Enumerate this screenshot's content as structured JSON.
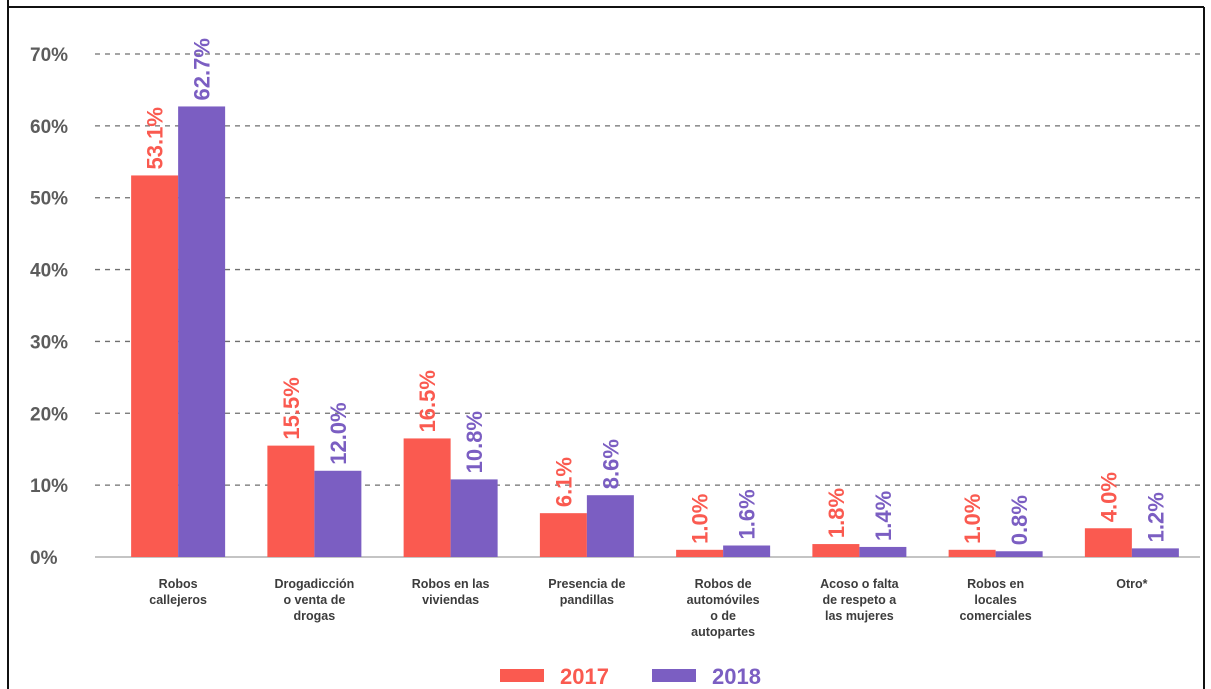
{
  "chart_data": {
    "type": "bar",
    "categories": [
      [
        "Robos",
        "callejeros"
      ],
      [
        "Drogadicción",
        "o venta de",
        "drogas"
      ],
      [
        "Robos en las",
        "viviendas"
      ],
      [
        "Presencia de",
        "pandillas"
      ],
      [
        "Robos de",
        "automóviles",
        "o de",
        "autopartes"
      ],
      [
        "Acoso o falta",
        "de respeto a",
        "las mujeres"
      ],
      [
        "Robos en",
        "locales",
        "comerciales"
      ],
      [
        "Otro*"
      ]
    ],
    "series": [
      {
        "name": "2017",
        "color": "#fa5a50",
        "values": [
          53.1,
          15.5,
          16.5,
          6.1,
          1.0,
          1.8,
          1.0,
          4.0
        ],
        "labels": [
          "53.1%",
          "15.5%",
          "16.5%",
          "6.1%",
          "1.0%",
          "1.8%",
          "1.0%",
          "4.0%"
        ]
      },
      {
        "name": "2018",
        "color": "#7b5ec2",
        "values": [
          62.7,
          12.0,
          10.8,
          8.6,
          1.6,
          1.4,
          0.8,
          1.2
        ],
        "labels": [
          "62.7%",
          "12.0%",
          "10.8%",
          "8.6%",
          "1.6%",
          "1.4%",
          "0.8%",
          "1.2%"
        ]
      }
    ],
    "yticks": [
      "0%",
      "10%",
      "20%",
      "30%",
      "40%",
      "50%",
      "60%",
      "70%"
    ],
    "ylim": [
      0,
      70
    ],
    "grid": true,
    "legend": "bottom-center"
  }
}
